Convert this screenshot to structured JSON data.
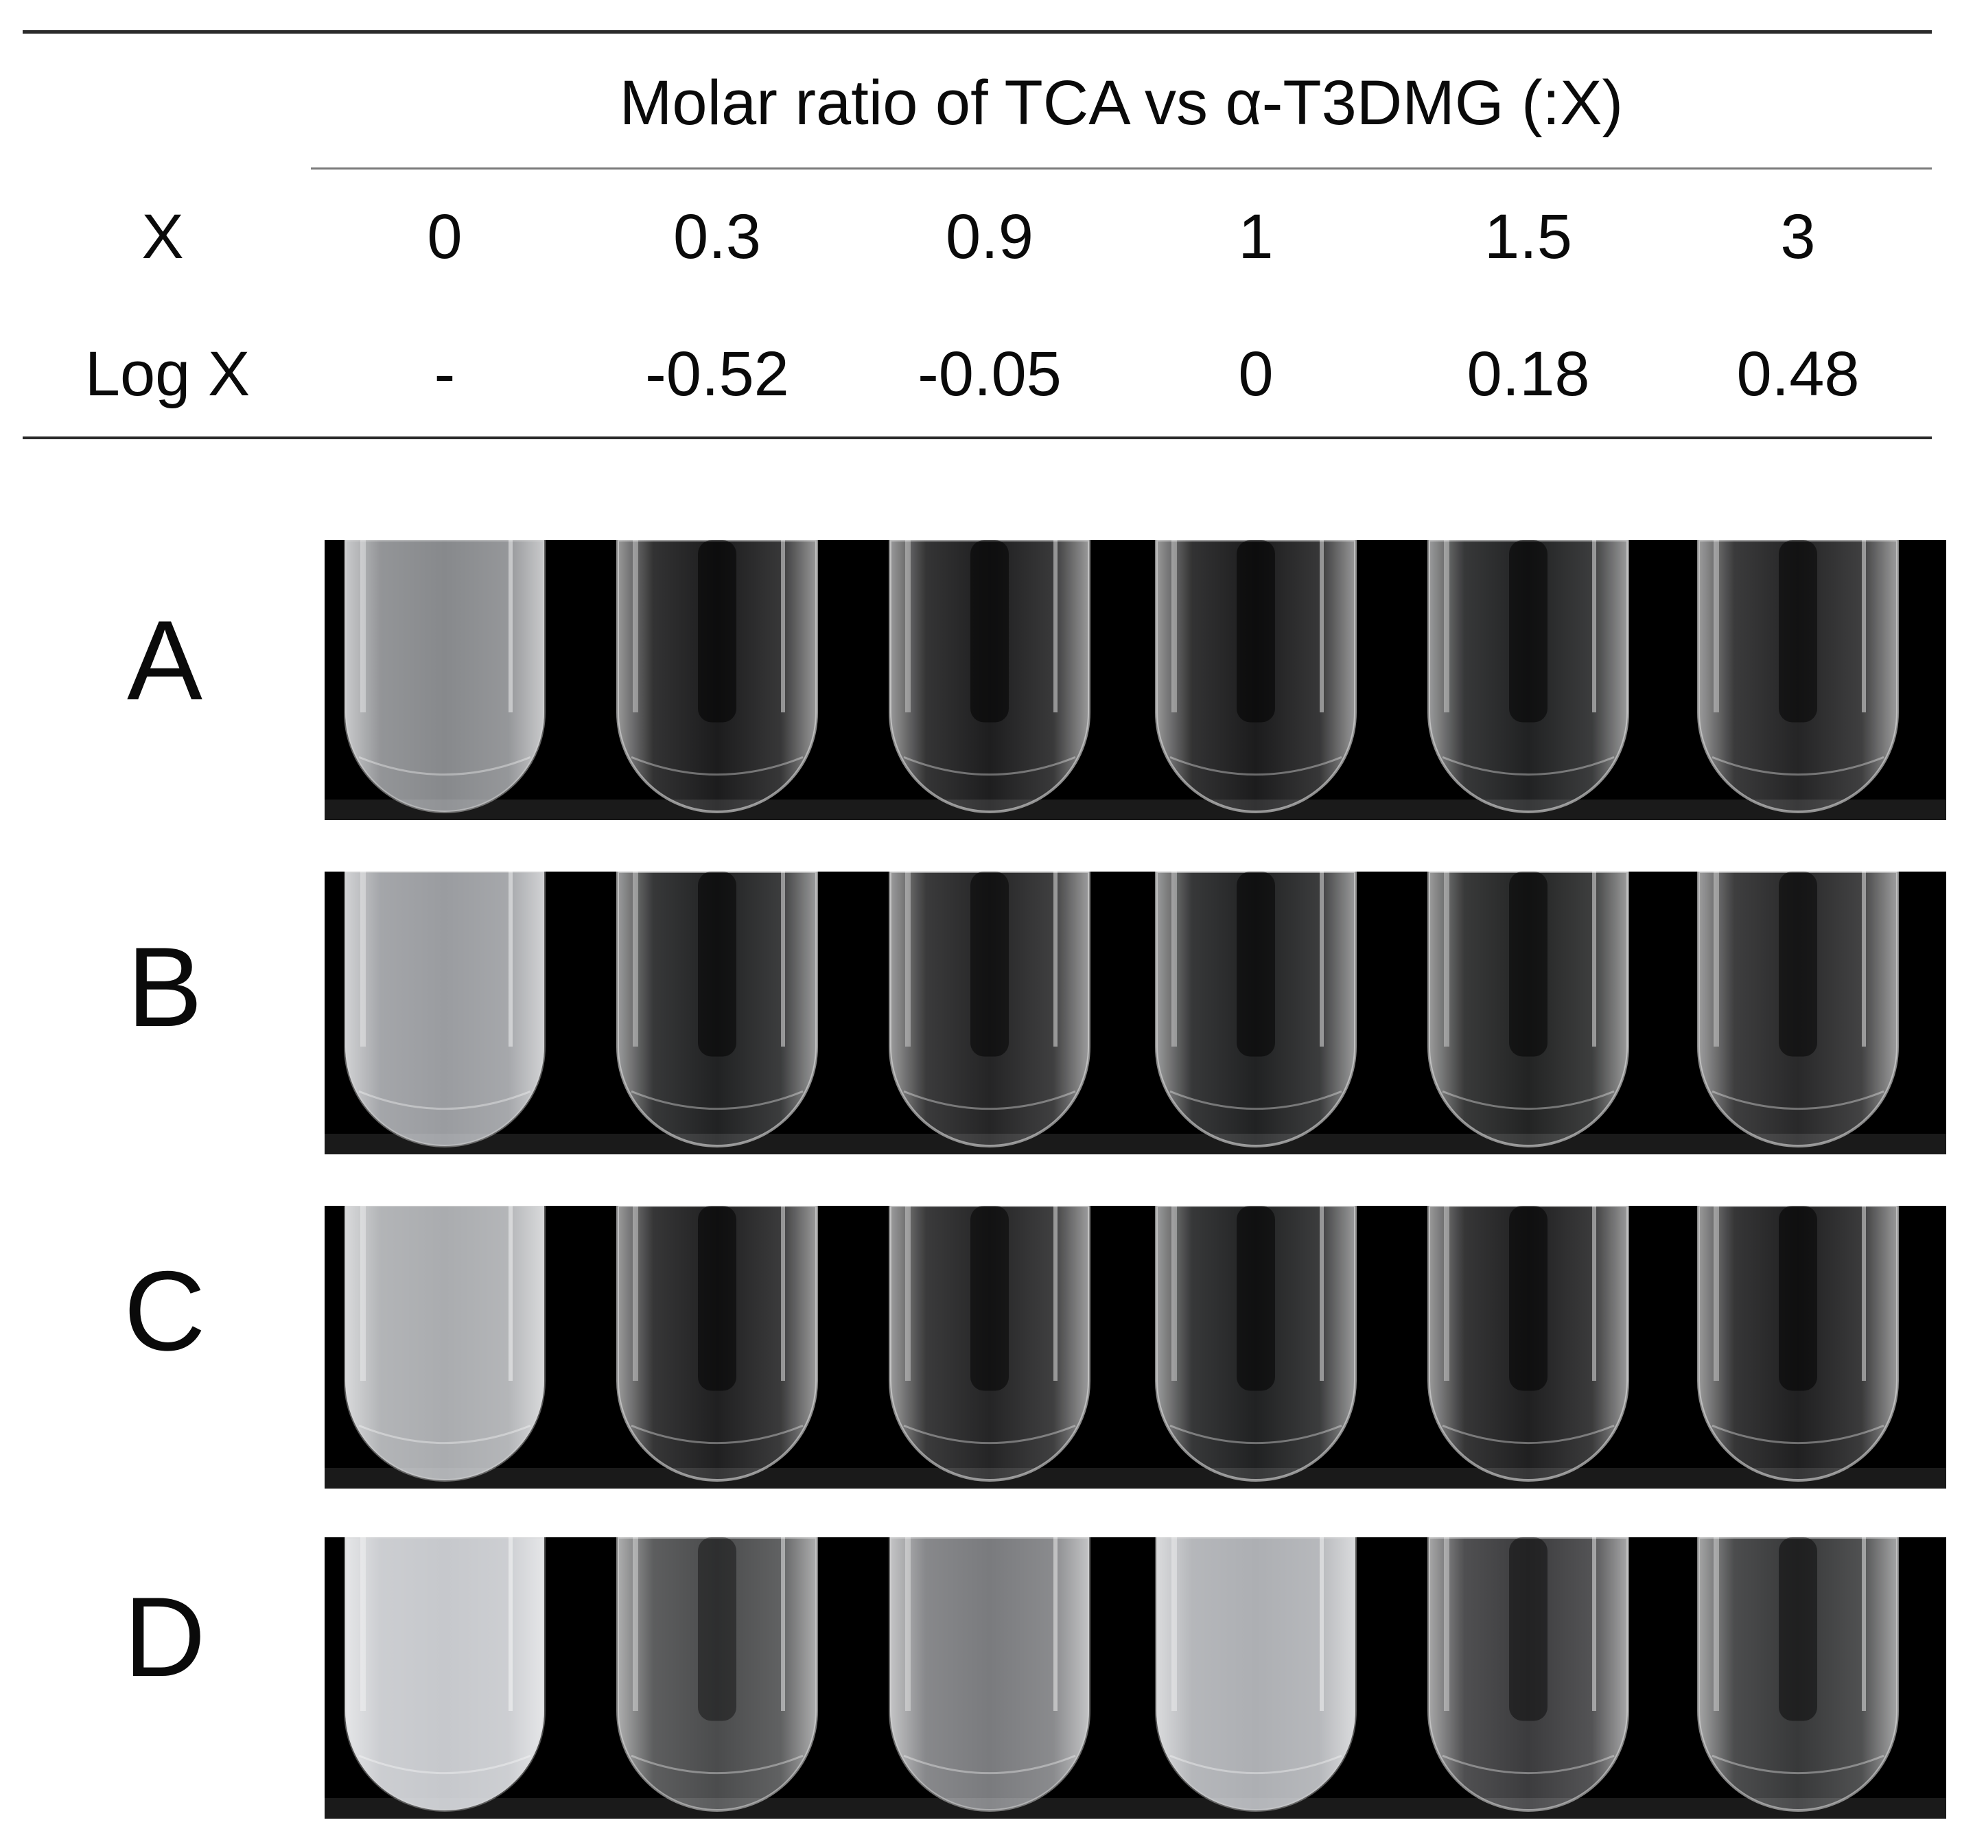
{
  "table": {
    "header": "Molar ratio of TCA vs α-T3DMG (:X)",
    "rows": [
      {
        "label": "X",
        "values": [
          "0",
          "0.3",
          "0.9",
          "1",
          "1.5",
          "3"
        ]
      },
      {
        "label": "Log X",
        "values": [
          "-",
          "-0.52",
          "-0.05",
          "0",
          "0.18",
          "0.48"
        ]
      }
    ]
  },
  "panels": [
    {
      "label": "A",
      "tubes": [
        {
          "turbidity": 0.62
        },
        {
          "turbidity": 0.05
        },
        {
          "turbidity": 0.06
        },
        {
          "turbidity": 0.05
        },
        {
          "turbidity": 0.08
        },
        {
          "turbidity": 0.1
        }
      ]
    },
    {
      "label": "B",
      "tubes": [
        {
          "turbidity": 0.72
        },
        {
          "turbidity": 0.08
        },
        {
          "turbidity": 0.1
        },
        {
          "turbidity": 0.08
        },
        {
          "turbidity": 0.09
        },
        {
          "turbidity": 0.12
        }
      ]
    },
    {
      "label": "C",
      "tubes": [
        {
          "turbidity": 0.8
        },
        {
          "turbidity": 0.07
        },
        {
          "turbidity": 0.1
        },
        {
          "turbidity": 0.08
        },
        {
          "turbidity": 0.07
        },
        {
          "turbidity": 0.07
        }
      ]
    },
    {
      "label": "D",
      "tubes": [
        {
          "turbidity": 0.95
        },
        {
          "turbidity": 0.3
        },
        {
          "turbidity": 0.55
        },
        {
          "turbidity": 0.82
        },
        {
          "turbidity": 0.22
        },
        {
          "turbidity": 0.2
        }
      ]
    }
  ],
  "colors": {
    "background": "#000000",
    "bench": "#1a1a1a",
    "glass": "#d8d8d8",
    "turbid": "#e6e9ee"
  }
}
